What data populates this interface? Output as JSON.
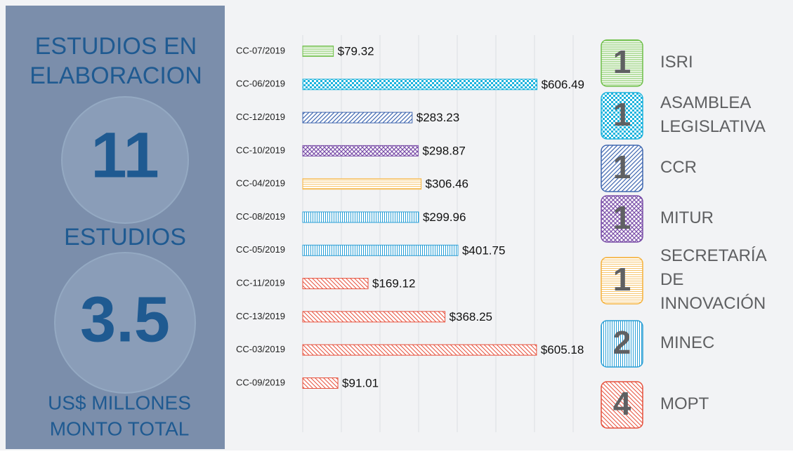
{
  "panel": {
    "heading": [
      "ESTUDIOS EN",
      "ELABORACION"
    ],
    "count": "11",
    "count_label": "ESTUDIOS",
    "amount": "3.5",
    "amount_label": [
      "US$ MILLONES",
      "MONTO TOTAL"
    ]
  },
  "chart_data": {
    "type": "bar",
    "orientation": "horizontal",
    "categories": [
      "CC-07/2019",
      "CC-06/2019",
      "CC-12/2019",
      "CC-10/2019",
      "CC-04/2019",
      "CC-08/2019",
      "CC-05/2019",
      "CC-11/2019",
      "CC-13/2019",
      "CC-03/2019",
      "CC-09/2019"
    ],
    "values": [
      79.32,
      606.49,
      283.23,
      298.87,
      306.46,
      299.96,
      401.75,
      169.12,
      368.25,
      605.18,
      91.01
    ],
    "value_labels": [
      "$79.32",
      "$606.49",
      "$283.23",
      "$298.87",
      "$306.46",
      "$299.96",
      "$401.75",
      "$169.12",
      "$368.25",
      "$605.18",
      "$91.01"
    ],
    "colors": [
      "#6fbf4a",
      "#1db3dd",
      "#3f67b0",
      "#7a4ea8",
      "#f5b23c",
      "#2a9fd6",
      "#2a9fd6",
      "#e6503c",
      "#e6503c",
      "#e6503c",
      "#e6503c"
    ],
    "xlim": [
      0,
      700
    ],
    "xticks": [
      0,
      100,
      200,
      300,
      400,
      500,
      600,
      700
    ],
    "grid": true
  },
  "legend": [
    {
      "count": 1,
      "name": "ISRI",
      "color": "#6fbf4a"
    },
    {
      "count": 1,
      "name": "ASAMBLEA LEGISLATIVA",
      "color": "#1db3dd"
    },
    {
      "count": 1,
      "name": "CCR",
      "color": "#3f67b0"
    },
    {
      "count": 1,
      "name": "MITUR",
      "color": "#7a4ea8"
    },
    {
      "count": 1,
      "name": "SECRETARÍA DE INNOVACIÓN",
      "color": "#f5b23c"
    },
    {
      "count": 2,
      "name": "MINEC",
      "color": "#2a9fd6"
    },
    {
      "count": 4,
      "name": "MOPT",
      "color": "#e6503c"
    }
  ]
}
